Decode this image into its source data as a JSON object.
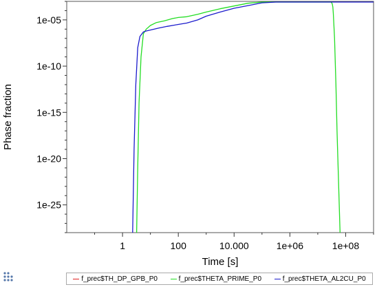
{
  "chart_data": {
    "type": "line",
    "title": "",
    "xlabel": "Time [s]",
    "ylabel": "Phase fraction",
    "xscale": "log",
    "yscale": "log",
    "xlim": [
      0.01,
      1000000000.0
    ],
    "ylim": [
      1e-28,
      0.001
    ],
    "x_ticks": [
      1,
      100,
      10000,
      1000000,
      100000000
    ],
    "x_tick_labels": [
      "1",
      "100",
      "10.000",
      "1e+06",
      "1e+08"
    ],
    "y_ticks": [
      1e-05,
      1e-10,
      1e-15,
      1e-20,
      1e-25
    ],
    "y_tick_labels": [
      "1e-05",
      "1e-10",
      "1e-15",
      "1e-20",
      "1e-25"
    ],
    "grid": false,
    "legend_position": "bottom",
    "series": [
      {
        "name": "f_prec$TH_DP_GPB_P0",
        "color": "#e02020",
        "x": [],
        "y": []
      },
      {
        "name": "f_prec$THETA_PRIME_P0",
        "color": "#22dd22",
        "x": [
          3.2,
          3.5,
          3.9,
          4.6,
          5.6,
          7.1,
          10,
          16,
          32,
          63,
          100,
          200,
          500,
          1000,
          3160,
          10000,
          31600,
          100000,
          316000,
          1000000,
          3160000,
          10000000,
          20000000,
          26000000,
          30000000,
          33000000,
          34700000,
          36000000,
          40000000,
          44700000,
          49000000,
          56200000,
          63100000
        ],
        "y": [
          1e-28,
          1e-21,
          1e-14,
          1e-09,
          3.2e-07,
          1e-06,
          2.5e-06,
          5e-06,
          8e-06,
          1.4e-05,
          1.8e-05,
          2.2e-05,
          4e-05,
          7e-05,
          0.00016,
          0.00032,
          0.00063,
          0.0011,
          0.0016,
          0.0018,
          0.0018,
          0.0018,
          0.0016,
          0.0012,
          0.0009,
          0.00056,
          0.00025,
          5e-05,
          1e-07,
          1e-12,
          1e-17,
          1e-23,
          1e-28
        ]
      },
      {
        "name": "f_prec$THETA_AL2CU_P0",
        "color": "#1a1acc",
        "x": [
          2.3,
          2.6,
          3.0,
          3.5,
          4.2,
          5.6,
          7.1,
          10,
          20,
          40,
          100,
          200,
          500,
          1000,
          3160,
          10000,
          31600,
          100000,
          316000,
          1000000,
          3160000,
          10000000,
          20000000,
          31600000,
          100000000,
          1000000000
        ],
        "y": [
          1e-28,
          1e-19,
          1e-12,
          1e-08,
          1.6e-07,
          5e-07,
          6.3e-07,
          8e-07,
          1.3e-06,
          2e-06,
          3.2e-06,
          4.5e-06,
          1e-05,
          2.5e-05,
          7e-05,
          0.00018,
          0.00035,
          0.0007,
          0.0011,
          0.0012,
          0.0012,
          0.0012,
          0.0014,
          0.002,
          0.0025,
          0.0025
        ]
      }
    ]
  },
  "legend": {
    "items": [
      {
        "label": "f_prec$TH_DP_GPB_P0",
        "color": "#e02020"
      },
      {
        "label": "f_prec$THETA_PRIME_P0",
        "color": "#22dd22"
      },
      {
        "label": "f_prec$THETA_AL2CU_P0",
        "color": "#1a1acc"
      }
    ]
  },
  "corner_icon": "grid-dots-icon"
}
